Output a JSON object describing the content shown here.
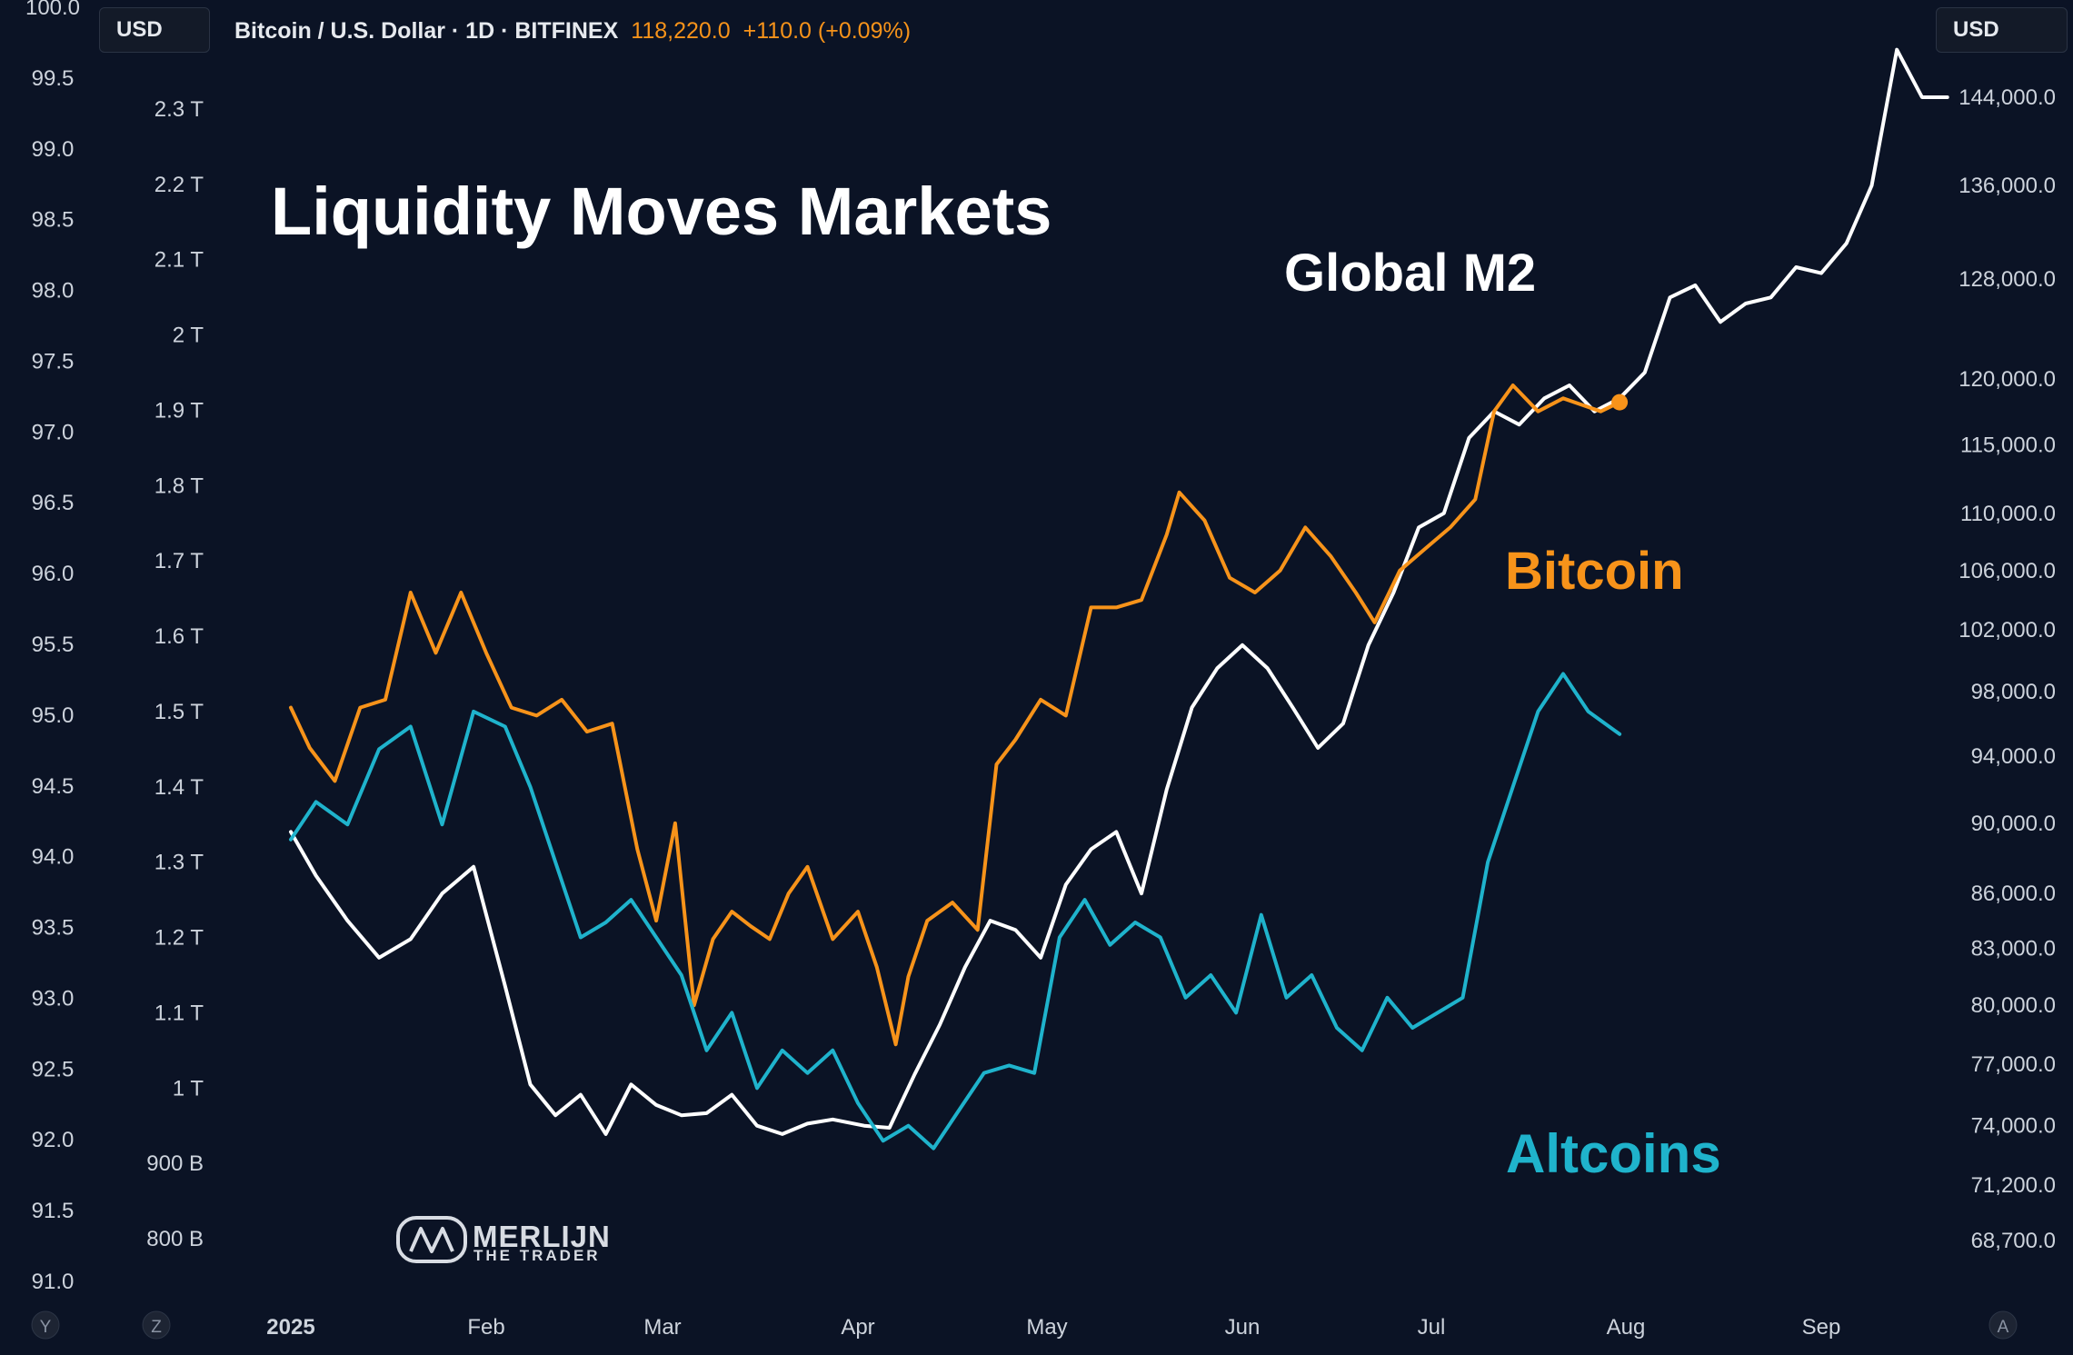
{
  "header": {
    "symbol": "Bitcoin / U.S. Dollar · 1D · BITFINEX",
    "price": "118,220.0",
    "change": "+110.0 (+0.09%)",
    "currency_left": "USD",
    "currency_right": "USD"
  },
  "bottom_buttons": [
    "Y",
    "Z",
    "A"
  ],
  "logo": {
    "line1": "MERLIJN",
    "line2": "THE TRADER"
  },
  "colors": {
    "background": "#0b1325",
    "bitcoin": "#f7931a",
    "m2": "#ffffff",
    "altcoins": "#1fb3cc",
    "axis_text": "#cdd3dc"
  },
  "chart_data": {
    "type": "line",
    "title": "Liquidity Moves Markets",
    "x_ticks": [
      "2025",
      "Feb",
      "Mar",
      "Apr",
      "May",
      "Jun",
      "Jul",
      "Aug",
      "Sep"
    ],
    "x_range": [
      "2025-01-01",
      "2025-09-24"
    ],
    "axes": {
      "left_outer": {
        "ticks": [
          "100.0",
          "99.5",
          "99.0",
          "98.5",
          "98.0",
          "97.5",
          "97.0",
          "96.5",
          "96.0",
          "95.5",
          "95.0",
          "94.5",
          "94.0",
          "93.5",
          "93.0",
          "92.5",
          "92.0",
          "91.5",
          "91.0"
        ],
        "range": [
          91.0,
          100.0
        ]
      },
      "left_inner": {
        "ticks": [
          "2.3 T",
          "2.2 T",
          "2.1 T",
          "2 T",
          "1.9 T",
          "1.8 T",
          "1.7 T",
          "1.6 T",
          "1.5 T",
          "1.4 T",
          "1.3 T",
          "1.2 T",
          "1.1 T",
          "1 T",
          "900 B",
          "800 B"
        ],
        "range_trillions": [
          0.8,
          2.3
        ]
      },
      "right": {
        "ticks": [
          "144,000.0",
          "136,000.0",
          "128,000.0",
          "120,000.0",
          "115,000.0",
          "110,000.0",
          "106,000.0",
          "102,000.0",
          "98,000.0",
          "94,000.0",
          "90,000.0",
          "86,000.0",
          "83,000.0",
          "80,000.0",
          "77,000.0",
          "74,000.0",
          "71,200.0",
          "68,700.0"
        ],
        "scale": "log",
        "range": [
          68700,
          144000
        ]
      }
    },
    "series": [
      {
        "name": "Global M2",
        "axis": "right",
        "x": [
          "2025-01-01",
          "2025-01-05",
          "2025-01-10",
          "2025-01-15",
          "2025-01-20",
          "2025-01-25",
          "2025-01-30",
          "2025-02-04",
          "2025-02-08",
          "2025-02-12",
          "2025-02-16",
          "2025-02-20",
          "2025-02-24",
          "2025-02-28",
          "2025-03-04",
          "2025-03-08",
          "2025-03-12",
          "2025-03-16",
          "2025-03-20",
          "2025-03-24",
          "2025-03-28",
          "2025-04-02",
          "2025-04-06",
          "2025-04-10",
          "2025-04-14",
          "2025-04-18",
          "2025-04-22",
          "2025-04-26",
          "2025-04-30",
          "2025-05-04",
          "2025-05-08",
          "2025-05-12",
          "2025-05-16",
          "2025-05-20",
          "2025-05-24",
          "2025-05-28",
          "2025-06-01",
          "2025-06-05",
          "2025-06-09",
          "2025-06-13",
          "2025-06-17",
          "2025-06-21",
          "2025-06-25",
          "2025-06-29",
          "2025-07-03",
          "2025-07-07",
          "2025-07-11",
          "2025-07-15",
          "2025-07-19",
          "2025-07-23",
          "2025-07-27",
          "2025-07-31",
          "2025-08-04",
          "2025-08-08",
          "2025-08-12",
          "2025-08-16",
          "2025-08-20",
          "2025-08-24",
          "2025-08-28",
          "2025-09-01",
          "2025-09-05",
          "2025-09-09",
          "2025-09-13",
          "2025-09-17",
          "2025-09-21"
        ],
        "y": [
          89500,
          87000,
          84500,
          82500,
          83500,
          86000,
          87500,
          81000,
          76000,
          74500,
          75500,
          73600,
          76000,
          75000,
          74500,
          74600,
          75500,
          74000,
          73600,
          74100,
          74300,
          74000,
          73900,
          76500,
          79000,
          82000,
          84500,
          84000,
          82500,
          86500,
          88500,
          89500,
          86000,
          92000,
          97000,
          99500,
          101000,
          99500,
          97000,
          94500,
          96000,
          101000,
          104500,
          109000,
          110000,
          115500,
          117500,
          116500,
          118500,
          119500,
          117500,
          118500,
          120500,
          126500,
          127500,
          124500,
          126000,
          126500,
          129000,
          128500,
          131000,
          136000,
          148500,
          144000,
          144000
        ]
      },
      {
        "name": "Bitcoin",
        "axis": "right",
        "x": [
          "2025-01-01",
          "2025-01-04",
          "2025-01-08",
          "2025-01-12",
          "2025-01-16",
          "2025-01-20",
          "2025-01-24",
          "2025-01-28",
          "2025-02-01",
          "2025-02-05",
          "2025-02-09",
          "2025-02-13",
          "2025-02-17",
          "2025-02-21",
          "2025-02-25",
          "2025-02-28",
          "2025-03-03",
          "2025-03-06",
          "2025-03-09",
          "2025-03-12",
          "2025-03-15",
          "2025-03-18",
          "2025-03-21",
          "2025-03-24",
          "2025-03-28",
          "2025-04-01",
          "2025-04-04",
          "2025-04-07",
          "2025-04-09",
          "2025-04-12",
          "2025-04-16",
          "2025-04-20",
          "2025-04-23",
          "2025-04-26",
          "2025-04-30",
          "2025-05-04",
          "2025-05-08",
          "2025-05-12",
          "2025-05-16",
          "2025-05-20",
          "2025-05-22",
          "2025-05-26",
          "2025-05-30",
          "2025-06-03",
          "2025-06-07",
          "2025-06-11",
          "2025-06-15",
          "2025-06-19",
          "2025-06-22",
          "2025-06-26",
          "2025-06-30",
          "2025-07-04",
          "2025-07-08",
          "2025-07-11",
          "2025-07-14",
          "2025-07-18",
          "2025-07-22",
          "2025-07-25",
          "2025-07-28",
          "2025-07-31"
        ],
        "y": [
          97000,
          94500,
          92500,
          97000,
          97500,
          104500,
          100500,
          104500,
          100500,
          97000,
          96500,
          97500,
          95500,
          96000,
          88500,
          84500,
          90000,
          80000,
          83500,
          85000,
          84200,
          83500,
          86000,
          87500,
          83500,
          85000,
          82000,
          78000,
          81500,
          84500,
          85500,
          84000,
          93500,
          95000,
          97500,
          96500,
          103500,
          103500,
          104000,
          108500,
          111500,
          109500,
          105500,
          104500,
          106000,
          109000,
          107000,
          104500,
          102500,
          106000,
          107500,
          109000,
          111000,
          117500,
          119500,
          117500,
          118500,
          118000,
          117500,
          118200
        ]
      },
      {
        "name": "Altcoins",
        "axis": "left_inner",
        "x": [
          "2025-01-01",
          "2025-01-05",
          "2025-01-10",
          "2025-01-15",
          "2025-01-20",
          "2025-01-25",
          "2025-01-30",
          "2025-02-04",
          "2025-02-08",
          "2025-02-12",
          "2025-02-16",
          "2025-02-20",
          "2025-02-24",
          "2025-02-28",
          "2025-03-04",
          "2025-03-08",
          "2025-03-12",
          "2025-03-16",
          "2025-03-20",
          "2025-03-24",
          "2025-03-28",
          "2025-04-01",
          "2025-04-05",
          "2025-04-09",
          "2025-04-13",
          "2025-04-17",
          "2025-04-21",
          "2025-04-25",
          "2025-04-29",
          "2025-05-03",
          "2025-05-07",
          "2025-05-11",
          "2025-05-15",
          "2025-05-19",
          "2025-05-23",
          "2025-05-27",
          "2025-05-31",
          "2025-06-04",
          "2025-06-08",
          "2025-06-12",
          "2025-06-16",
          "2025-06-20",
          "2025-06-24",
          "2025-06-28",
          "2025-07-02",
          "2025-07-06",
          "2025-07-10",
          "2025-07-14",
          "2025-07-18",
          "2025-07-22",
          "2025-07-26",
          "2025-07-31"
        ],
        "y": [
          1.33,
          1.38,
          1.35,
          1.45,
          1.48,
          1.35,
          1.5,
          1.48,
          1.4,
          1.3,
          1.2,
          1.22,
          1.25,
          1.2,
          1.15,
          1.05,
          1.1,
          1.0,
          1.05,
          1.02,
          1.05,
          0.98,
          0.93,
          0.95,
          0.92,
          0.97,
          1.02,
          1.03,
          1.02,
          1.2,
          1.25,
          1.19,
          1.22,
          1.2,
          1.12,
          1.15,
          1.1,
          1.23,
          1.12,
          1.15,
          1.08,
          1.05,
          1.12,
          1.08,
          1.1,
          1.12,
          1.3,
          1.4,
          1.5,
          1.55,
          1.5,
          1.47
        ]
      }
    ],
    "annotations": [
      {
        "text": "Global M2",
        "color": "#ffffff"
      },
      {
        "text": "Bitcoin",
        "color": "#f7931a"
      },
      {
        "text": "Altcoins",
        "color": "#1fb3cc"
      }
    ],
    "grid": false,
    "legend": "none"
  }
}
